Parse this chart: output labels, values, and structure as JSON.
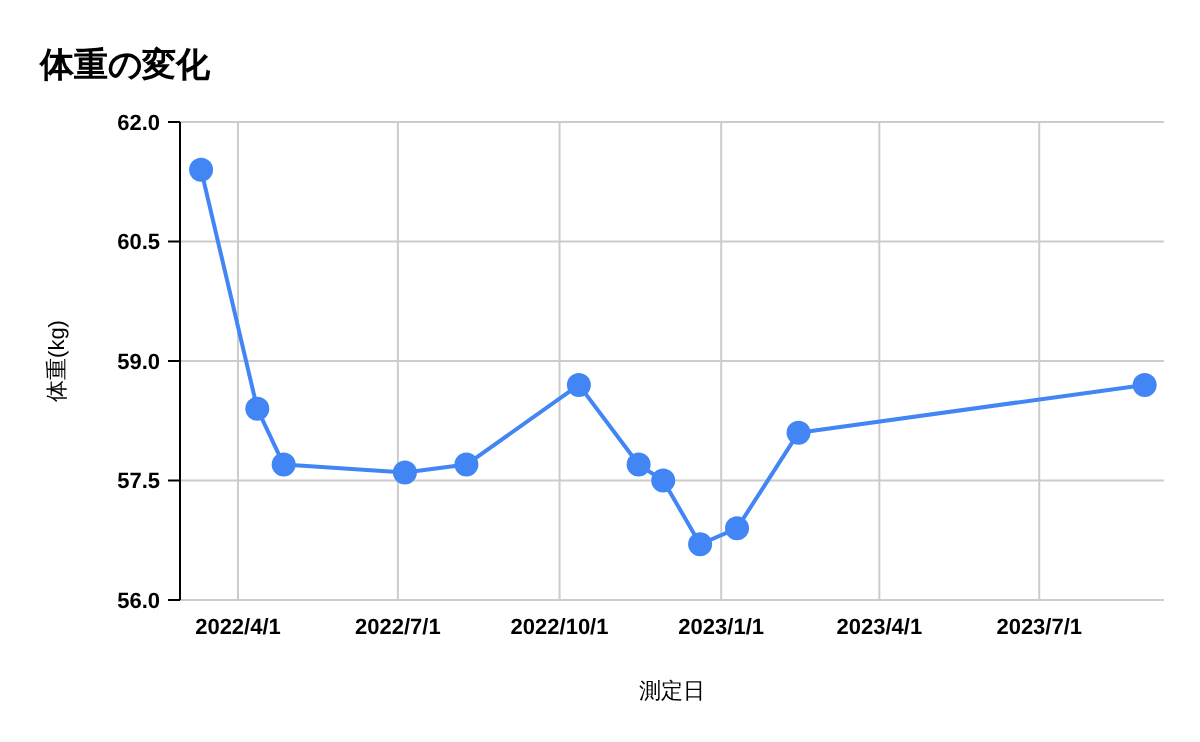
{
  "chart_data": {
    "type": "line",
    "title": "体重の変化",
    "xlabel": "測定日",
    "ylabel": "体重(kg)",
    "x": [
      "2022-03-11",
      "2022-04-12",
      "2022-04-27",
      "2022-07-05",
      "2022-08-09",
      "2022-10-12",
      "2022-11-15",
      "2022-11-29",
      "2022-12-20",
      "2023-01-10",
      "2023-02-14",
      "2023-08-30"
    ],
    "series": [
      {
        "color": "#4285f4",
        "values": [
          61.4,
          58.4,
          57.7,
          57.6,
          57.7,
          58.7,
          57.7,
          57.5,
          56.7,
          56.9,
          58.1,
          58.7
        ]
      }
    ],
    "xlim": [
      "2022-02-27",
      "2023-09-10"
    ],
    "xticks": [
      {
        "value": "2022-04-01",
        "label": "2022/4/1"
      },
      {
        "value": "2022-07-01",
        "label": "2022/7/1"
      },
      {
        "value": "2022-10-01",
        "label": "2022/10/1"
      },
      {
        "value": "2023-01-01",
        "label": "2023/1/1"
      },
      {
        "value": "2023-04-01",
        "label": "2023/4/1"
      },
      {
        "value": "2023-07-01",
        "label": "2023/7/1"
      }
    ],
    "ylim": [
      56,
      62
    ],
    "yticks": [
      {
        "value": 56,
        "label": "56.0"
      },
      {
        "value": 57.5,
        "label": "57.5"
      },
      {
        "value": 59,
        "label": "59.0"
      },
      {
        "value": 60.5,
        "label": "60.5"
      },
      {
        "value": 62,
        "label": "62.0"
      }
    ],
    "grid": true,
    "marker": "circle",
    "line_style": "solid"
  }
}
